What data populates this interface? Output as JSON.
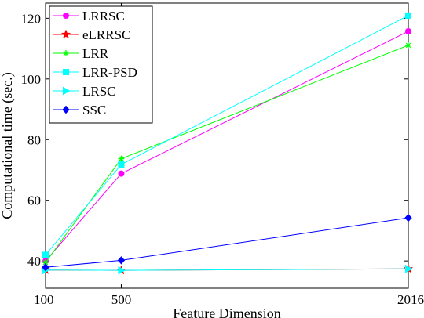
{
  "chart_data": {
    "type": "line",
    "title": "",
    "xlabel": "Feature Dimension",
    "ylabel": "Computational time (sec.)",
    "x": [
      100,
      500,
      2016
    ],
    "xticks": [
      "100",
      "500",
      "2016"
    ],
    "yticks": [
      "40",
      "60",
      "80",
      "100",
      "120"
    ],
    "xlim": [
      100,
      2016
    ],
    "ylim": [
      31,
      125
    ],
    "grid": false,
    "legend_position": "top-left",
    "series": [
      {
        "name": "LRRSC",
        "values": [
          40.0,
          68.8,
          115.7
        ],
        "color": "#ff00ff",
        "marker": "circle"
      },
      {
        "name": "eLRRSC",
        "values": [
          37.0,
          36.9,
          37.4
        ],
        "color": "#ff0000",
        "marker": "star"
      },
      {
        "name": "LRR",
        "values": [
          39.5,
          73.7,
          111.1
        ],
        "color": "#00ff00",
        "marker": "asterisk"
      },
      {
        "name": "LRR-PSD",
        "values": [
          42.0,
          71.8,
          120.9
        ],
        "color": "#00ffff",
        "marker": "square"
      },
      {
        "name": "LRSC",
        "values": [
          37.0,
          36.9,
          37.4
        ],
        "color": "#00ffff",
        "marker": "triangle-right"
      },
      {
        "name": "SSC",
        "values": [
          37.9,
          40.2,
          54.2
        ],
        "color": "#0000ff",
        "marker": "diamond"
      }
    ]
  }
}
